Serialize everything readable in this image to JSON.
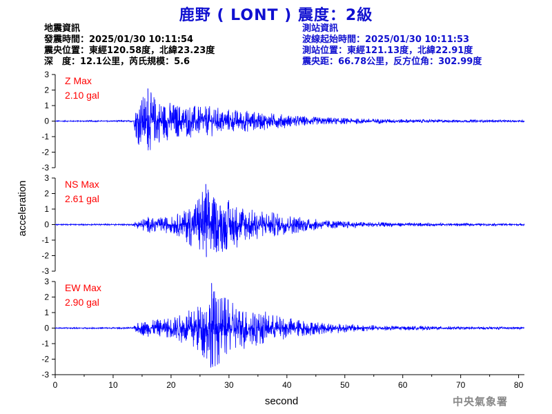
{
  "header": {
    "title": "鹿野 ( LONT ) 震度：2級"
  },
  "earthquake_info": {
    "heading": "地震資訊",
    "origin_time": "發震時間：2025/01/30 10:11:54",
    "epicenter": "震央位置：東經120.58度，北緯23.23度",
    "depth_magnitude": "深　度：12.1公里，芮氏規模：5.6"
  },
  "station_info": {
    "heading": "測站資訊",
    "wave_start": "波線起始時間：2025/01/30 10:11:53",
    "location": "測站位置：東經121.13度，北緯22.91度",
    "distance_azimuth": "震央距：66.78公里，反方位角：302.99度"
  },
  "footer": {
    "agency": "中央氣象署"
  },
  "colors": {
    "trace": "#0000ff",
    "label": "#ff0000",
    "title": "#1010d0"
  },
  "chart_data": {
    "type": "line",
    "xlabel": "second",
    "ylabel": "acceleration",
    "xlim": [
      0,
      81
    ],
    "x_ticks": [
      0,
      10,
      20,
      30,
      40,
      50,
      60,
      70,
      80
    ],
    "ylim": [
      -3,
      3
    ],
    "y_ticks": [
      3,
      2,
      1,
      0,
      -1,
      -2,
      -3
    ],
    "grid": false,
    "series": [
      {
        "component": "Z",
        "label": "Z Max",
        "max_value": "2.10 gal",
        "peak": 2.1,
        "envelope": [
          [
            0,
            0.04
          ],
          [
            13.5,
            0.05
          ],
          [
            14,
            1.4
          ],
          [
            15,
            1.9
          ],
          [
            16,
            2.1
          ],
          [
            18,
            1.6
          ],
          [
            20,
            1.3
          ],
          [
            22,
            1.2
          ],
          [
            25,
            1.1
          ],
          [
            28,
            0.95
          ],
          [
            30,
            0.85
          ],
          [
            33,
            0.75
          ],
          [
            36,
            0.6
          ],
          [
            40,
            0.45
          ],
          [
            45,
            0.3
          ],
          [
            50,
            0.22
          ],
          [
            55,
            0.18
          ],
          [
            60,
            0.14
          ],
          [
            70,
            0.1
          ],
          [
            81,
            0.08
          ]
        ]
      },
      {
        "component": "NS",
        "label": "NS Max",
        "max_value": "2.61 gal",
        "peak": 2.61,
        "envelope": [
          [
            0,
            0.04
          ],
          [
            13.5,
            0.06
          ],
          [
            14,
            0.3
          ],
          [
            16,
            0.55
          ],
          [
            18,
            0.5
          ],
          [
            20,
            0.65
          ],
          [
            22,
            0.9
          ],
          [
            24,
            1.8
          ],
          [
            25,
            2.3
          ],
          [
            26,
            2.61
          ],
          [
            28,
            2.0
          ],
          [
            30,
            1.8
          ],
          [
            32,
            1.5
          ],
          [
            34,
            1.2
          ],
          [
            37,
            0.9
          ],
          [
            40,
            0.7
          ],
          [
            45,
            0.4
          ],
          [
            50,
            0.25
          ],
          [
            55,
            0.18
          ],
          [
            60,
            0.13
          ],
          [
            70,
            0.1
          ],
          [
            81,
            0.07
          ]
        ]
      },
      {
        "component": "EW",
        "label": "EW Max",
        "max_value": "2.90 gal",
        "peak": 2.9,
        "envelope": [
          [
            0,
            0.04
          ],
          [
            13.5,
            0.06
          ],
          [
            14,
            0.35
          ],
          [
            16,
            0.65
          ],
          [
            18,
            0.6
          ],
          [
            20,
            0.8
          ],
          [
            22,
            1.1
          ],
          [
            24,
            1.6
          ],
          [
            26,
            2.2
          ],
          [
            27,
            2.9
          ],
          [
            28,
            2.6
          ],
          [
            30,
            2.0
          ],
          [
            32,
            1.6
          ],
          [
            34,
            1.3
          ],
          [
            37,
            1.0
          ],
          [
            40,
            0.75
          ],
          [
            45,
            0.45
          ],
          [
            50,
            0.3
          ],
          [
            55,
            0.2
          ],
          [
            60,
            0.15
          ],
          [
            70,
            0.11
          ],
          [
            81,
            0.08
          ]
        ]
      }
    ]
  }
}
